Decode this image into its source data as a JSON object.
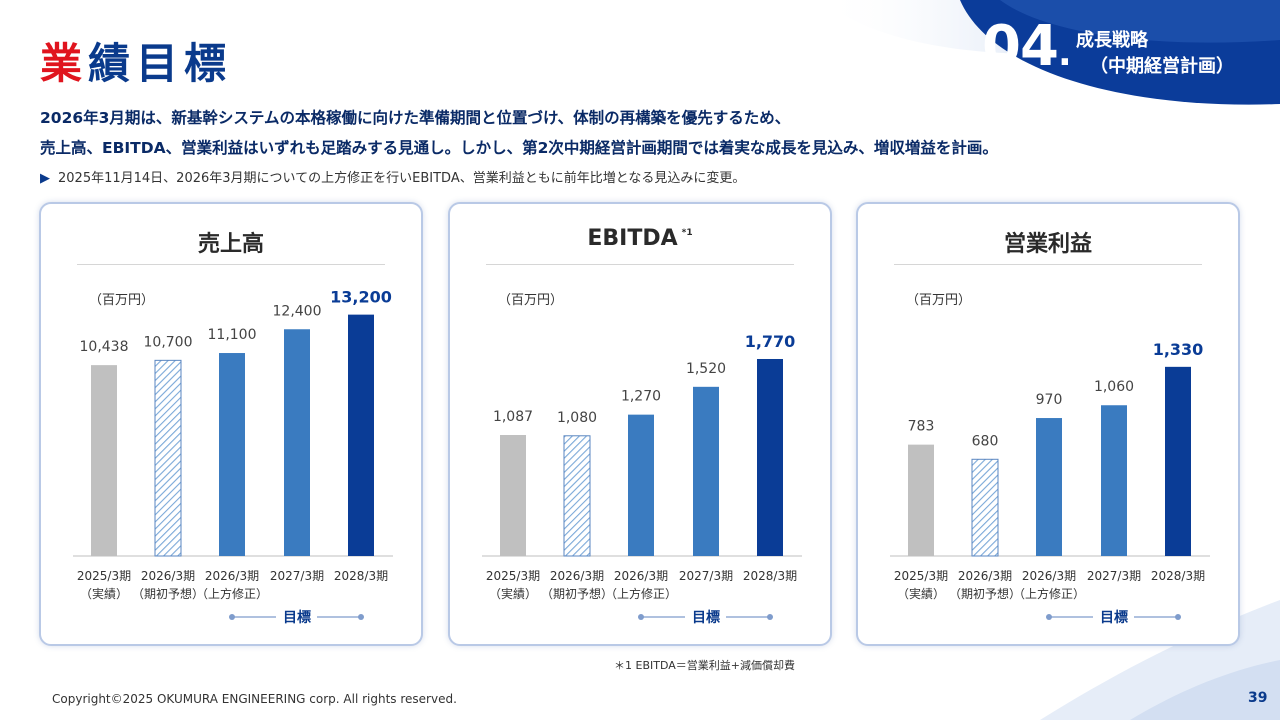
{
  "header": {
    "title_red": "業",
    "title_blue": "績目標",
    "section_number": "04",
    "section_dot": ".",
    "section_name_line1": "成長戦略",
    "section_name_line2": "（中期経営計画）"
  },
  "lead": {
    "line1": "2026年3月期は、新基幹システムの本格稼働に向けた準備期間と位置づけ、体制の再構築を優先するため、",
    "line2": "売上高、EBITDA、営業利益はいずれも足踏みする見通し。しかし、第2次中期経営計画期間では着実な成長を見込み、増収増益を計画。",
    "note_arrow": "▶",
    "note": "2025年11月14日、2026年3月期についての上方修正を行いEBITDA、営業利益ともに前年比増となる見込みに変更。"
  },
  "colors": {
    "actual": "#c0c0c0",
    "initial_forecast": "#7aa8d8",
    "revised": "#3a7bc0",
    "plan": "#3a7bc0",
    "target": "#0a3c96",
    "accent_blue": "#0a3a8c",
    "accent_red": "#e0141e"
  },
  "chart_data": [
    {
      "type": "bar",
      "title": "売上高",
      "title_note": "",
      "unit": "（百万円）",
      "categories": [
        [
          "2025/3期",
          "（実績）"
        ],
        [
          "2026/3期",
          "（期初予想）"
        ],
        [
          "2026/3期",
          "（上方修正）"
        ],
        [
          "2027/3期",
          ""
        ],
        [
          "2028/3期",
          ""
        ]
      ],
      "values": [
        10438,
        10700,
        11100,
        12400,
        13200
      ],
      "labels": [
        "10,438",
        "10,700",
        "11,100",
        "12,400",
        "13,200"
      ],
      "styles": [
        "actual",
        "hatch",
        "plan",
        "plan",
        "target"
      ],
      "ylim": [
        0,
        14000
      ],
      "target_label": "目標"
    },
    {
      "type": "bar",
      "title": "EBITDA",
      "title_note": "*1",
      "unit": "（百万円）",
      "categories": [
        [
          "2025/3期",
          "（実績）"
        ],
        [
          "2026/3期",
          "（期初予想）"
        ],
        [
          "2026/3期",
          "（上方修正）"
        ],
        [
          "2027/3期",
          ""
        ],
        [
          "2028/3期",
          ""
        ]
      ],
      "values": [
        1087,
        1080,
        1270,
        1520,
        1770
      ],
      "labels": [
        "1,087",
        "1,080",
        "1,270",
        "1,520",
        "1,770"
      ],
      "styles": [
        "actual",
        "hatch",
        "plan",
        "plan",
        "target"
      ],
      "ylim": [
        0,
        2300
      ],
      "target_label": "目標"
    },
    {
      "type": "bar",
      "title": "営業利益",
      "title_note": "",
      "unit": "（百万円）",
      "categories": [
        [
          "2025/3期",
          "（実績）"
        ],
        [
          "2026/3期",
          "（期初予想）"
        ],
        [
          "2026/3期",
          "（上方修正）"
        ],
        [
          "2027/3期",
          ""
        ],
        [
          "2028/3期",
          ""
        ]
      ],
      "values": [
        783,
        680,
        970,
        1060,
        1330
      ],
      "labels": [
        "783",
        "680",
        "970",
        "1,060",
        "1,330"
      ],
      "styles": [
        "actual",
        "hatch",
        "plan",
        "plan",
        "target"
      ],
      "ylim": [
        0,
        1800
      ],
      "target_label": "目標"
    }
  ],
  "footer": {
    "footnote": "＊1 EBITDA＝営業利益+減価償却費",
    "copyright": "Copyright©2025 OKUMURA ENGINEERING corp. All rights reserved.",
    "page_number": "39"
  }
}
